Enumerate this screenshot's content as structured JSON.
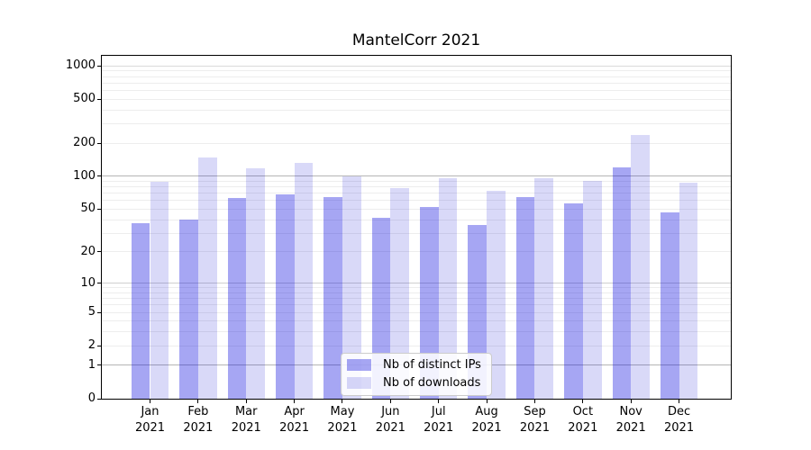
{
  "chart_data": {
    "type": "bar",
    "title": "MantelCorr 2021",
    "categories": [
      "Jan",
      "Feb",
      "Mar",
      "Apr",
      "May",
      "Jun",
      "Jul",
      "Aug",
      "Sep",
      "Oct",
      "Nov",
      "Dec"
    ],
    "x_year_label": "2021",
    "series": [
      {
        "name": "Nb of distinct IPs",
        "base_color": "#0000dd",
        "alpha": 0.35,
        "rendered_hex": "#a6a6f2",
        "values": [
          37,
          40,
          63,
          68,
          64,
          42,
          52,
          36,
          65,
          57,
          120,
          47
        ]
      },
      {
        "name": "Nb of downloads",
        "base_color": "#0000d2",
        "alpha": 0.15,
        "rendered_hex": "#d9d9f8",
        "values": [
          89,
          148,
          118,
          133,
          100,
          78,
          97,
          74,
          97,
          91,
          237,
          87
        ]
      }
    ],
    "yscale": "log1p",
    "y_ticks": [
      1000,
      500,
      200,
      100,
      50,
      20,
      10,
      5,
      2,
      1,
      0
    ],
    "ylim": [
      0,
      1230
    ],
    "grid": "both",
    "legend_position": "lower-center-inside",
    "colors": {
      "grid_major": "#b5b5b5",
      "grid_mid": "#cfcfcf",
      "grid_top": "#dadada",
      "grid_minor": "#ededed",
      "spine": "#000000",
      "text": "#000000",
      "background": "#ffffff"
    }
  }
}
